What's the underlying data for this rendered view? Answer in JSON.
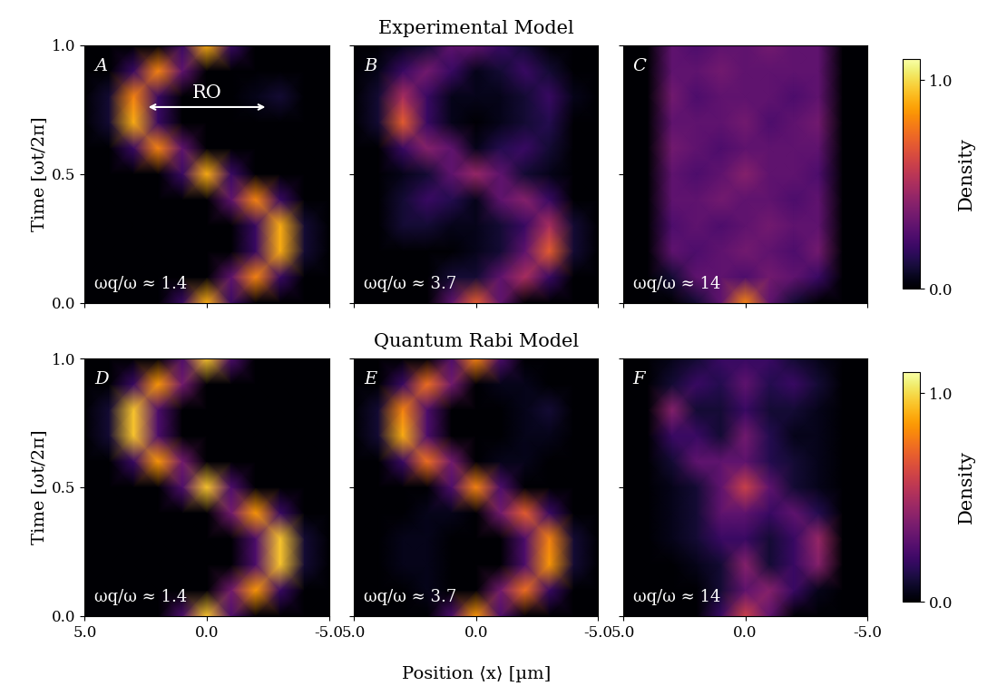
{
  "row_titles": [
    "Experimental Model",
    "Quantum Rabi Model"
  ],
  "xlabel": "Position ⟨x⟩ [µm]",
  "ylabel": "Time [ωt/2π]",
  "colorbar": {
    "label": "Density",
    "range": [
      0.0,
      1.1
    ],
    "ticks": [
      0.0,
      1.0
    ]
  },
  "chart_data": [
    {
      "type": "heatmap",
      "panel": "A",
      "annotation": "ωq/ω ≈ 1.4",
      "tick_labels": "y",
      "arrow": {
        "label": "RO",
        "x": [
          2.5,
          -2.5
        ],
        "t": 0.76
      },
      "x": [
        5,
        4,
        3,
        2,
        1,
        0,
        -1,
        -2,
        -3,
        -4,
        -5
      ],
      "y": [
        0.0,
        0.1,
        0.2,
        0.3,
        0.4,
        0.5,
        0.6,
        0.7,
        0.8,
        0.9,
        1.0
      ],
      "xlim": [
        5.0,
        -5.0
      ],
      "ylim": [
        0.0,
        1.0
      ],
      "xticks": [
        5.0,
        0.0,
        -5.0
      ],
      "yticks": [
        0.0,
        0.5,
        1.0
      ],
      "cells": [
        [
          0,
          0,
          0,
          0,
          0.2,
          0.9,
          0.2,
          0,
          0,
          0,
          0
        ],
        [
          0,
          0,
          0,
          0,
          0,
          0,
          0.3,
          0.8,
          0.2,
          0,
          0
        ],
        [
          0,
          0,
          0,
          0,
          0,
          0,
          0,
          0.2,
          0.9,
          0.1,
          0
        ],
        [
          0,
          0,
          0,
          0,
          0,
          0,
          0,
          0.2,
          0.9,
          0.1,
          0
        ],
        [
          0,
          0,
          0,
          0,
          0,
          0,
          0.3,
          0.8,
          0.2,
          0,
          0
        ],
        [
          0,
          0,
          0,
          0,
          0.2,
          0.9,
          0.2,
          0,
          0,
          0,
          0
        ],
        [
          0,
          0,
          0.2,
          0.8,
          0.3,
          0,
          0,
          0,
          0,
          0,
          0
        ],
        [
          0,
          0.1,
          0.9,
          0.2,
          0,
          0,
          0,
          0,
          0,
          0,
          0
        ],
        [
          0,
          0.1,
          0.8,
          0.2,
          0,
          0,
          0,
          0.05,
          0.1,
          0,
          0
        ],
        [
          0,
          0,
          0.2,
          0.8,
          0.3,
          0,
          0,
          0,
          0,
          0,
          0
        ],
        [
          0,
          0,
          0,
          0,
          0.2,
          0.9,
          0.2,
          0,
          0,
          0,
          0
        ]
      ]
    },
    {
      "type": "heatmap",
      "panel": "B",
      "annotation": "ωq/ω ≈ 3.7",
      "tick_labels": false,
      "x": [
        5,
        4,
        3,
        2,
        1,
        0,
        -1,
        -2,
        -3,
        -4,
        -5
      ],
      "y": [
        0.0,
        0.1,
        0.2,
        0.3,
        0.4,
        0.5,
        0.6,
        0.7,
        0.8,
        0.9,
        1.0
      ],
      "xlim": [
        5.0,
        -5.0
      ],
      "ylim": [
        0.0,
        1.0
      ],
      "xticks": [
        5.0,
        0.0,
        -5.0
      ],
      "yticks": [
        0.0,
        0.5,
        1.0
      ],
      "cells": [
        [
          0,
          0,
          0,
          0,
          0.3,
          0.7,
          0.3,
          0,
          0,
          0,
          0
        ],
        [
          0,
          0,
          0,
          0,
          0.1,
          0.1,
          0.3,
          0.5,
          0.2,
          0,
          0
        ],
        [
          0,
          0,
          0,
          0,
          0,
          0.05,
          0.1,
          0.3,
          0.7,
          0.1,
          0
        ],
        [
          0,
          0,
          0.1,
          0.1,
          0.05,
          0.05,
          0.1,
          0.2,
          0.5,
          0.1,
          0
        ],
        [
          0,
          0,
          0.1,
          0.2,
          0.15,
          0.05,
          0.3,
          0.4,
          0.2,
          0,
          0
        ],
        [
          0,
          0,
          0.05,
          0.1,
          0.3,
          0.45,
          0.3,
          0.1,
          0.05,
          0,
          0
        ],
        [
          0,
          0,
          0.2,
          0.4,
          0.3,
          0.05,
          0.15,
          0.2,
          0.1,
          0,
          0
        ],
        [
          0,
          0.1,
          0.7,
          0.2,
          0.05,
          0,
          0.05,
          0.1,
          0.15,
          0,
          0
        ],
        [
          0,
          0.1,
          0.5,
          0.2,
          0.05,
          0.05,
          0.05,
          0.1,
          0.2,
          0.05,
          0
        ],
        [
          0,
          0.05,
          0.2,
          0.35,
          0.2,
          0.05,
          0.1,
          0.2,
          0.1,
          0,
          0
        ],
        [
          0,
          0,
          0.05,
          0.1,
          0.3,
          0.3,
          0.2,
          0.1,
          0,
          0,
          0
        ]
      ]
    },
    {
      "type": "heatmap",
      "panel": "C",
      "annotation": "ωq/ω ≈ 14",
      "tick_labels": false,
      "x": [
        5,
        4,
        3,
        2,
        1,
        0,
        -1,
        -2,
        -3,
        -4,
        -5
      ],
      "y": [
        0.0,
        0.1,
        0.2,
        0.3,
        0.4,
        0.5,
        0.6,
        0.7,
        0.8,
        0.9,
        1.0
      ],
      "xlim": [
        5.0,
        -5.0
      ],
      "ylim": [
        0.0,
        1.0
      ],
      "xticks": [
        5.0,
        0.0,
        -5.0
      ],
      "yticks": [
        0.0,
        0.5,
        1.0
      ],
      "cells": [
        [
          0,
          0,
          0,
          0.1,
          0.3,
          0.8,
          0.3,
          0.1,
          0,
          0,
          0
        ],
        [
          0,
          0,
          0.1,
          0.3,
          0.3,
          0.25,
          0.35,
          0.3,
          0.2,
          0,
          0
        ],
        [
          0,
          0,
          0.3,
          0.25,
          0.3,
          0.35,
          0.3,
          0.25,
          0.35,
          0,
          0
        ],
        [
          0,
          0,
          0.25,
          0.3,
          0.25,
          0.3,
          0.35,
          0.3,
          0.3,
          0,
          0
        ],
        [
          0,
          0,
          0.3,
          0.3,
          0.35,
          0.3,
          0.3,
          0.25,
          0.3,
          0,
          0
        ],
        [
          0,
          0,
          0.3,
          0.25,
          0.3,
          0.4,
          0.3,
          0.3,
          0.25,
          0,
          0
        ],
        [
          0,
          0,
          0.35,
          0.3,
          0.25,
          0.3,
          0.3,
          0.3,
          0.3,
          0,
          0
        ],
        [
          0,
          0,
          0.3,
          0.3,
          0.3,
          0.35,
          0.25,
          0.3,
          0.35,
          0,
          0
        ],
        [
          0,
          0,
          0.35,
          0.25,
          0.3,
          0.3,
          0.3,
          0.25,
          0.3,
          0,
          0
        ],
        [
          0,
          0,
          0.3,
          0.3,
          0.35,
          0.3,
          0.3,
          0.3,
          0.3,
          0,
          0
        ],
        [
          0,
          0,
          0.3,
          0.25,
          0.3,
          0.3,
          0.35,
          0.3,
          0.3,
          0,
          0
        ]
      ]
    },
    {
      "type": "heatmap",
      "panel": "D",
      "annotation": "ωq/ω ≈ 1.4",
      "tick_labels": true,
      "x": [
        5,
        4,
        3,
        2,
        1,
        0,
        -1,
        -2,
        -3,
        -4,
        -5
      ],
      "y": [
        0.0,
        0.1,
        0.2,
        0.3,
        0.4,
        0.5,
        0.6,
        0.7,
        0.8,
        0.9,
        1.0
      ],
      "xlim": [
        5.0,
        -5.0
      ],
      "ylim": [
        0.0,
        1.0
      ],
      "xticks": [
        5.0,
        0.0,
        -5.0
      ],
      "yticks": [
        0.0,
        0.5,
        1.0
      ],
      "cells": [
        [
          0,
          0,
          0,
          0,
          0.25,
          0.95,
          0.25,
          0,
          0,
          0,
          0
        ],
        [
          0,
          0,
          0,
          0,
          0,
          0,
          0.35,
          0.85,
          0.2,
          0,
          0
        ],
        [
          0,
          0,
          0,
          0,
          0,
          0,
          0,
          0.25,
          0.95,
          0.1,
          0
        ],
        [
          0,
          0,
          0,
          0,
          0,
          0,
          0,
          0.25,
          0.95,
          0.1,
          0
        ],
        [
          0,
          0,
          0,
          0,
          0,
          0,
          0.35,
          0.85,
          0.2,
          0,
          0
        ],
        [
          0,
          0,
          0,
          0,
          0.25,
          0.95,
          0.25,
          0,
          0,
          0,
          0
        ],
        [
          0,
          0,
          0.2,
          0.85,
          0.35,
          0,
          0,
          0,
          0,
          0,
          0
        ],
        [
          0,
          0.1,
          0.95,
          0.25,
          0,
          0,
          0,
          0,
          0,
          0,
          0
        ],
        [
          0,
          0.1,
          0.95,
          0.25,
          0,
          0,
          0,
          0,
          0,
          0,
          0
        ],
        [
          0,
          0,
          0.2,
          0.85,
          0.35,
          0,
          0,
          0,
          0,
          0,
          0
        ],
        [
          0,
          0,
          0,
          0,
          0.25,
          0.95,
          0.25,
          0,
          0,
          0,
          0
        ]
      ]
    },
    {
      "type": "heatmap",
      "panel": "E",
      "annotation": "ωq/ω ≈ 3.7",
      "tick_labels": "x",
      "x": [
        5,
        4,
        3,
        2,
        1,
        0,
        -1,
        -2,
        -3,
        -4,
        -5
      ],
      "y": [
        0.0,
        0.1,
        0.2,
        0.3,
        0.4,
        0.5,
        0.6,
        0.7,
        0.8,
        0.9,
        1.0
      ],
      "xlim": [
        5.0,
        -5.0
      ],
      "ylim": [
        0.0,
        1.0
      ],
      "xticks": [
        5.0,
        0.0,
        -5.0
      ],
      "yticks": [
        0.0,
        0.5,
        1.0
      ],
      "cells": [
        [
          0,
          0,
          0,
          0,
          0.25,
          0.85,
          0.25,
          0,
          0,
          0,
          0
        ],
        [
          0,
          0,
          0,
          0.05,
          0,
          0,
          0.35,
          0.75,
          0.2,
          0,
          0
        ],
        [
          0,
          0,
          0.05,
          0.05,
          0,
          0,
          0,
          0.25,
          0.85,
          0.1,
          0
        ],
        [
          0,
          0,
          0.05,
          0.05,
          0,
          0,
          0,
          0.25,
          0.8,
          0.1,
          0
        ],
        [
          0,
          0,
          0,
          0.05,
          0.05,
          0,
          0.35,
          0.7,
          0.2,
          0,
          0
        ],
        [
          0,
          0,
          0,
          0,
          0.25,
          0.8,
          0.25,
          0,
          0,
          0,
          0
        ],
        [
          0,
          0,
          0.2,
          0.75,
          0.35,
          0,
          0.05,
          0.05,
          0,
          0,
          0
        ],
        [
          0,
          0.1,
          0.9,
          0.25,
          0,
          0,
          0,
          0.05,
          0.05,
          0,
          0
        ],
        [
          0,
          0.1,
          0.8,
          0.25,
          0,
          0,
          0,
          0.05,
          0.1,
          0,
          0
        ],
        [
          0,
          0,
          0.2,
          0.75,
          0.35,
          0,
          0.05,
          0.05,
          0,
          0,
          0
        ],
        [
          0,
          0,
          0,
          0,
          0.25,
          0.8,
          0.25,
          0,
          0,
          0,
          0
        ]
      ]
    },
    {
      "type": "heatmap",
      "panel": "F",
      "annotation": "ωq/ω ≈ 14",
      "tick_labels": "x",
      "x": [
        5,
        4,
        3,
        2,
        1,
        0,
        -1,
        -2,
        -3,
        -4,
        -5
      ],
      "y": [
        0.0,
        0.1,
        0.2,
        0.3,
        0.4,
        0.5,
        0.6,
        0.7,
        0.8,
        0.9,
        1.0
      ],
      "xlim": [
        5.0,
        -5.0
      ],
      "ylim": [
        0.0,
        1.0
      ],
      "xticks": [
        5.0,
        0.0,
        -5.0
      ],
      "yticks": [
        0.0,
        0.5,
        1.0
      ],
      "cells": [
        [
          0,
          0,
          0,
          0,
          0.2,
          0.6,
          0.3,
          0,
          0,
          0,
          0
        ],
        [
          0,
          0,
          0,
          0,
          0.1,
          0.3,
          0.4,
          0.2,
          0.05,
          0,
          0
        ],
        [
          0,
          0,
          0,
          0.05,
          0.1,
          0.4,
          0.1,
          0.2,
          0.4,
          0,
          0
        ],
        [
          0,
          0,
          0.05,
          0.1,
          0.2,
          0.2,
          0.1,
          0.2,
          0.45,
          0,
          0
        ],
        [
          0,
          0,
          0.05,
          0.1,
          0.3,
          0.3,
          0.2,
          0.3,
          0.15,
          0,
          0
        ],
        [
          0,
          0,
          0.05,
          0.1,
          0.3,
          0.6,
          0.3,
          0.1,
          0.05,
          0,
          0
        ],
        [
          0,
          0,
          0.1,
          0.3,
          0.3,
          0.3,
          0.15,
          0.1,
          0.05,
          0,
          0
        ],
        [
          0,
          0,
          0.2,
          0.2,
          0.1,
          0.35,
          0.15,
          0.05,
          0.05,
          0,
          0
        ],
        [
          0,
          0,
          0.4,
          0.1,
          0.1,
          0.2,
          0.1,
          0.1,
          0.05,
          0,
          0
        ],
        [
          0,
          0,
          0.1,
          0.2,
          0.15,
          0.3,
          0.15,
          0.2,
          0.1,
          0,
          0
        ],
        [
          0,
          0,
          0.05,
          0.1,
          0.2,
          0.2,
          0.2,
          0.1,
          0.05,
          0,
          0
        ]
      ]
    }
  ]
}
